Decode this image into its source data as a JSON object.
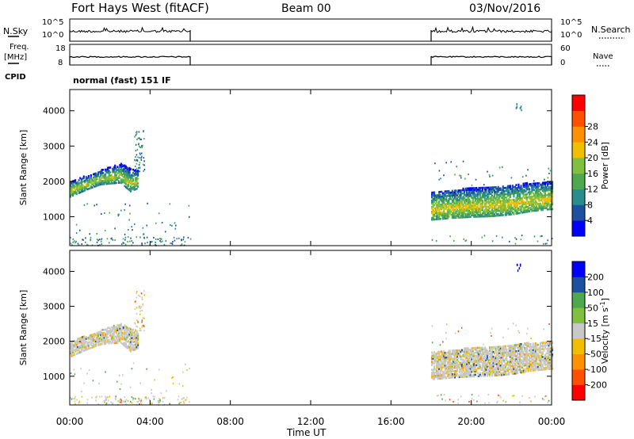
{
  "header": {
    "station": "Fort Hays West (fitACF)",
    "beam": "Beam 00",
    "date": "03/Nov/2016"
  },
  "left_labels": {
    "nsky": "N.Sky",
    "nsky_ticks": [
      "10^5",
      "10^0"
    ],
    "freq": "Freq.",
    "freq_unit": "[MHz]",
    "freq_ticks": [
      "18",
      "8"
    ],
    "cpid": "CPID"
  },
  "right_labels": {
    "nsearch": "N.Search",
    "nsearch_ticks": [
      "10^5",
      "10^0"
    ],
    "nave": "Nave",
    "nave_ticks": [
      "60",
      "0"
    ]
  },
  "cpid_text": "normal (fast) 151 IF",
  "colors": {
    "power": [
      "#0000ff",
      "#1e50a0",
      "#2a8c8c",
      "#4ea84e",
      "#80c040",
      "#f0c000",
      "#ff9000",
      "#ff5000",
      "#ff0000"
    ],
    "velocity": [
      "#ff0000",
      "#ff5000",
      "#ff9000",
      "#f0c000",
      "#c8c8c8",
      "#80c040",
      "#4ea84e",
      "#1e50a0",
      "#0000ff"
    ]
  },
  "chart_data": [
    {
      "type": "heatmap",
      "x_ticks": [
        "00:00",
        "04:00",
        "08:00",
        "12:00",
        "16:00",
        "20:00",
        "00:00"
      ],
      "xlabel": "Time UT",
      "xlim": [
        0,
        24
      ],
      "ylabel": "Slant Range [km]",
      "ylim": [
        180,
        4600
      ],
      "y_ticks": [
        1000,
        2000,
        3000,
        4000
      ],
      "colorbar": {
        "label": "Power [dB]",
        "ticks": [
          "4",
          "8",
          "12",
          "16",
          "20",
          "24",
          "28"
        ],
        "range": [
          0,
          32
        ]
      },
      "data_periods_ut": [
        [
          0,
          6
        ],
        [
          18,
          24
        ]
      ],
      "bands": [
        {
          "t": [
            0.0,
            0.8,
            1.5,
            2.5,
            3.0,
            3.4
          ],
          "lo": [
            1550,
            1750,
            1900,
            1950,
            1700,
            1800
          ],
          "hi": [
            2000,
            2150,
            2300,
            2500,
            2350,
            2300
          ],
          "core_db": 20
        },
        {
          "t": [
            18.0,
            19.0,
            20.0,
            21.0,
            22.0,
            23.0,
            24.0
          ],
          "lo": [
            900,
            950,
            980,
            1000,
            1050,
            1150,
            1200
          ],
          "hi": [
            1700,
            1750,
            1800,
            1850,
            1900,
            1950,
            2000
          ],
          "core_db": 22
        }
      ]
    },
    {
      "type": "heatmap",
      "x_ticks": [
        "00:00",
        "04:00",
        "08:00",
        "12:00",
        "16:00",
        "20:00",
        "00:00"
      ],
      "xlabel": "Time UT",
      "xlim": [
        0,
        24
      ],
      "ylabel": "Slant Range [km]",
      "ylim": [
        180,
        4600
      ],
      "y_ticks": [
        1000,
        2000,
        3000,
        4000
      ],
      "colorbar": {
        "label": "Velocity [m s^-1]",
        "ticks": [
          "-200",
          "-100",
          "-50",
          "-15",
          "15",
          "50",
          "100",
          "200"
        ],
        "range": [
          -250,
          250
        ]
      },
      "data_periods_ut": [
        [
          0,
          6
        ],
        [
          18,
          24
        ]
      ]
    }
  ]
}
